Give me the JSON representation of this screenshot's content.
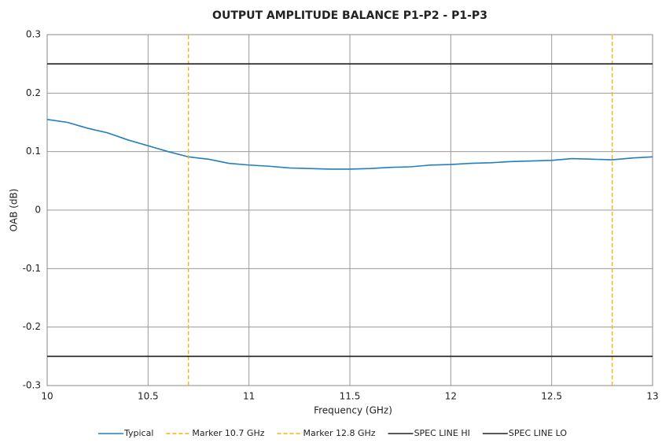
{
  "chart_data": {
    "type": "line",
    "title": "OUTPUT AMPLITUDE BALANCE P1-P2 - P1-P3",
    "xlabel": "Frequency (GHz)",
    "ylabel": "OAB (dB)",
    "xlim": [
      10,
      13
    ],
    "ylim": [
      -0.3,
      0.3
    ],
    "xticks": [
      10,
      10.5,
      11,
      11.5,
      12,
      12.5,
      13
    ],
    "yticks": [
      -0.3,
      -0.2,
      -0.1,
      0,
      0.1,
      0.2,
      0.3
    ],
    "grid": true,
    "legend": "bottom",
    "series": [
      {
        "name": "Typical",
        "color": "#1f7fc0",
        "dash": false,
        "x": [
          10,
          10.1,
          10.2,
          10.3,
          10.4,
          10.5,
          10.6,
          10.7,
          10.8,
          10.9,
          11,
          11.1,
          11.2,
          11.3,
          11.4,
          11.5,
          11.6,
          11.7,
          11.8,
          11.9,
          12,
          12.1,
          12.2,
          12.3,
          12.4,
          12.5,
          12.6,
          12.7,
          12.8,
          12.9,
          13
        ],
        "values": [
          0.155,
          0.15,
          0.14,
          0.132,
          0.12,
          0.11,
          0.1,
          0.091,
          0.087,
          0.08,
          0.077,
          0.075,
          0.072,
          0.071,
          0.07,
          0.07,
          0.071,
          0.073,
          0.074,
          0.077,
          0.078,
          0.08,
          0.081,
          0.083,
          0.084,
          0.085,
          0.088,
          0.087,
          0.086,
          0.089,
          0.091
        ]
      },
      {
        "name": "Marker 10.7 GHz",
        "color": "#f5b800",
        "dash": true,
        "x": [
          10.7,
          10.7
        ],
        "values": [
          -0.3,
          0.3
        ]
      },
      {
        "name": "Marker 12.8 GHz",
        "color": "#f5b800",
        "dash": true,
        "x": [
          12.8,
          12.8
        ],
        "values": [
          -0.3,
          0.3
        ]
      },
      {
        "name": "SPEC LINE HI",
        "color": "#222222",
        "dash": false,
        "x": [
          10,
          13
        ],
        "values": [
          0.25,
          0.25
        ]
      },
      {
        "name": "SPEC LINE LO",
        "color": "#222222",
        "dash": false,
        "x": [
          10,
          13
        ],
        "values": [
          -0.25,
          -0.25
        ]
      }
    ]
  }
}
